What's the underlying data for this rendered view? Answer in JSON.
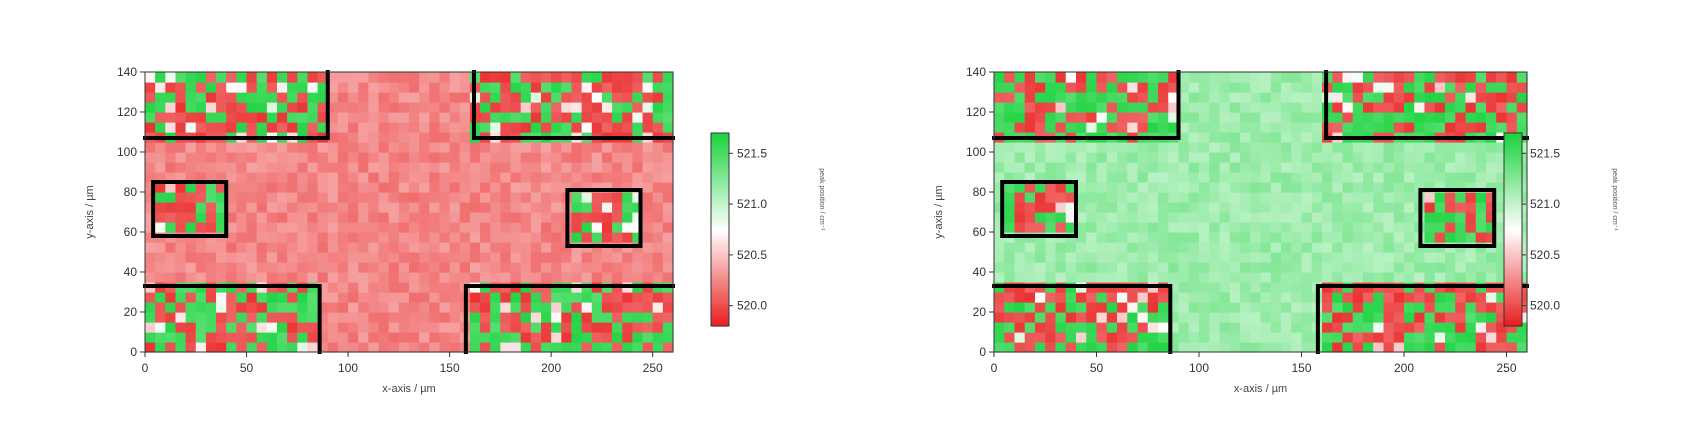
{
  "chart_data": [
    {
      "type": "heatmap",
      "xlabel": "x-axis / µm",
      "ylabel": "y-axis / µm",
      "xlim": [
        0,
        260
      ],
      "ylim": [
        0,
        140
      ],
      "xticks": [
        "0",
        "50",
        "100",
        "150",
        "200",
        "250"
      ],
      "yticks": [
        "0",
        "20",
        "40",
        "60",
        "80",
        "100",
        "120",
        "140"
      ],
      "colorbar": {
        "label": "peak position / cm⁻¹",
        "range": [
          519.8,
          521.7
        ],
        "ticks": [
          "520.0",
          "520.5",
          "521.0",
          "521.5"
        ],
        "low_color": "#e81c1c",
        "mid_color": "#ffffff",
        "high_color": "#19d23c"
      },
      "background_level": 520.25,
      "grid": {
        "nx": 52,
        "ny": 28,
        "cell_um": 5
      },
      "pattern_regions": [
        {
          "name": "top-left",
          "x": [
            0,
            90
          ],
          "y": [
            107,
            140
          ]
        },
        {
          "name": "top-right",
          "x": [
            162,
            260
          ],
          "y": [
            107,
            140
          ]
        },
        {
          "name": "middle-left",
          "x": [
            4,
            40
          ],
          "y": [
            58,
            85
          ]
        },
        {
          "name": "middle-right",
          "x": [
            208,
            244
          ],
          "y": [
            53,
            81
          ]
        },
        {
          "name": "bottom-left",
          "x": [
            0,
            86
          ],
          "y": [
            0,
            33
          ]
        },
        {
          "name": "bottom-right",
          "x": [
            158,
            260
          ],
          "y": [
            0,
            33
          ]
        }
      ]
    },
    {
      "type": "heatmap",
      "xlabel": "x-axis / µm",
      "ylabel": "y-axis / µm",
      "xlim": [
        0,
        260
      ],
      "ylim": [
        0,
        140
      ],
      "xticks": [
        "0",
        "50",
        "100",
        "150",
        "200",
        "250"
      ],
      "yticks": [
        "0",
        "20",
        "40",
        "60",
        "80",
        "100",
        "120",
        "140"
      ],
      "colorbar": {
        "label": "peak position / cm⁻¹",
        "range": [
          519.8,
          521.7
        ],
        "ticks": [
          "520.0",
          "520.5",
          "521.0",
          "521.5"
        ],
        "low_color": "#e81c1c",
        "mid_color": "#ffffff",
        "high_color": "#19d23c"
      },
      "background_level": 521.15,
      "grid": {
        "nx": 52,
        "ny": 28,
        "cell_um": 5
      },
      "pattern_regions": [
        {
          "name": "top-left",
          "x": [
            0,
            90
          ],
          "y": [
            107,
            140
          ]
        },
        {
          "name": "top-right",
          "x": [
            162,
            260
          ],
          "y": [
            107,
            140
          ]
        },
        {
          "name": "middle-left",
          "x": [
            4,
            40
          ],
          "y": [
            58,
            85
          ]
        },
        {
          "name": "middle-right",
          "x": [
            208,
            244
          ],
          "y": [
            53,
            81
          ]
        },
        {
          "name": "bottom-left",
          "x": [
            0,
            86
          ],
          "y": [
            0,
            33
          ]
        },
        {
          "name": "bottom-right",
          "x": [
            158,
            260
          ],
          "y": [
            0,
            33
          ]
        }
      ]
    }
  ]
}
